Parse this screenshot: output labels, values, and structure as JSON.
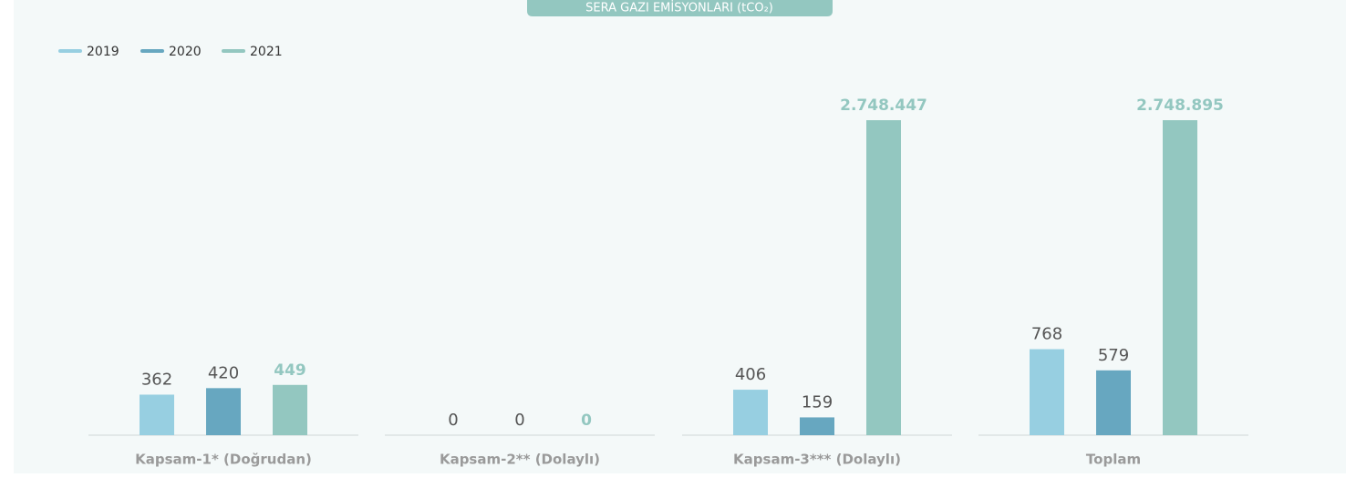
{
  "chart_data": {
    "type": "bar",
    "title": "SERA GAZI EMİSYONLARI (tCO₂)",
    "categories": [
      "Kapsam-1* (Doğrudan)",
      "Kapsam-2** (Dolaylı)",
      "Kapsam-3*** (Dolaylı)",
      "Toplam"
    ],
    "series": [
      {
        "name": "2019",
        "color": "#97cfe1",
        "values": [
          362,
          0,
          406,
          768
        ],
        "value_labels": [
          "362",
          "0",
          "406",
          "768"
        ]
      },
      {
        "name": "2020",
        "color": "#67a7c0",
        "values": [
          420,
          0,
          159,
          579
        ],
        "value_labels": [
          "420",
          "0",
          "159",
          "579"
        ]
      },
      {
        "name": "2021",
        "color": "#93c7c0",
        "values": [
          449,
          0,
          2748447,
          2748895
        ],
        "value_labels": [
          "449",
          "0",
          "2.748.447",
          "2.748.895"
        ]
      }
    ]
  }
}
